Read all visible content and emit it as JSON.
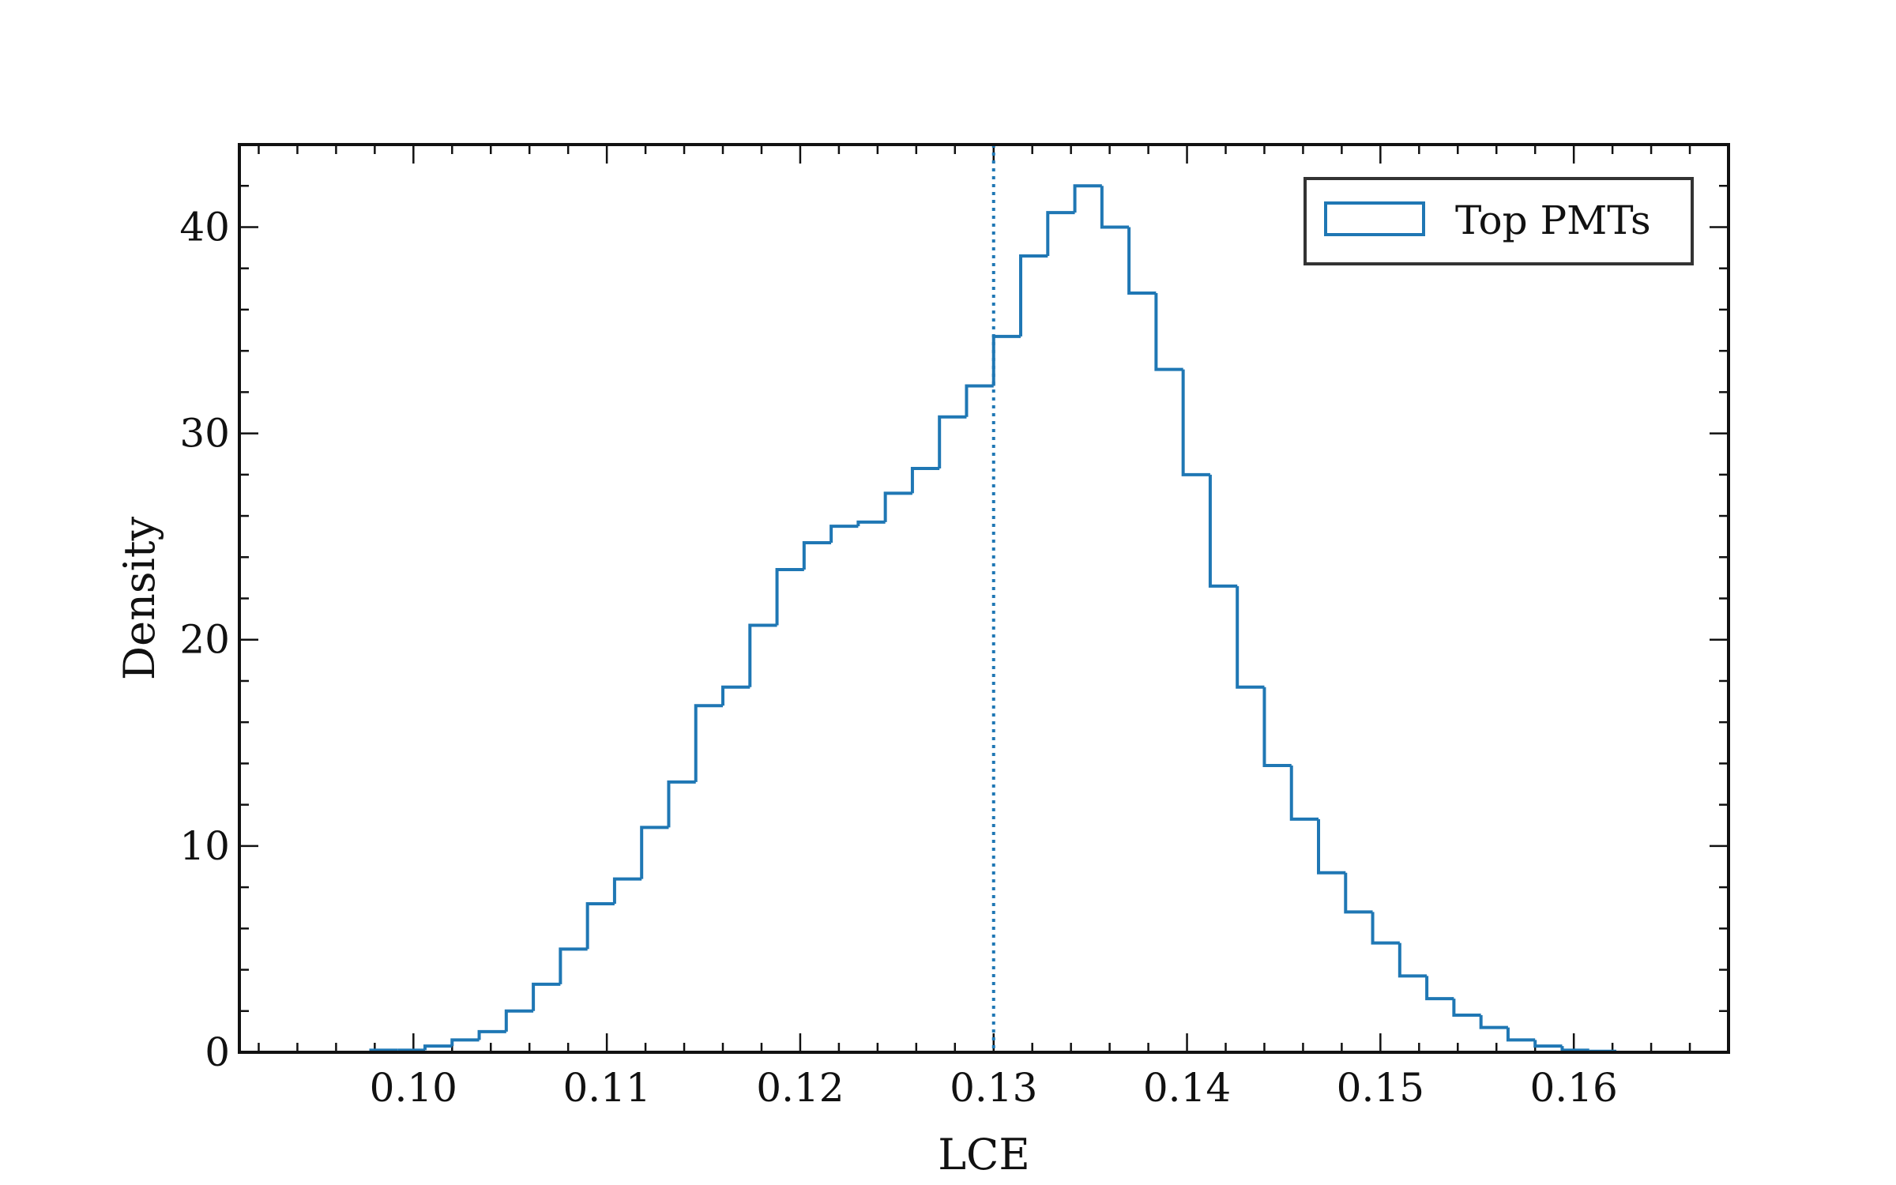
{
  "chart_data": {
    "type": "histogram",
    "xlabel": "LCE",
    "ylabel": "Density",
    "xlim": [
      0.091,
      0.168
    ],
    "ylim": [
      0,
      44
    ],
    "x_ticks": [
      0.1,
      0.11,
      0.12,
      0.13,
      0.14,
      0.15,
      0.16
    ],
    "x_tick_labels": [
      "0.10",
      "0.11",
      "0.12",
      "0.13",
      "0.14",
      "0.15",
      "0.16"
    ],
    "y_ticks": [
      0,
      10,
      20,
      30,
      40
    ],
    "y_tick_labels": [
      "0",
      "10",
      "20",
      "30",
      "40"
    ],
    "vline": {
      "x": 0.13,
      "style": "dotted",
      "color": "#1f77b4"
    },
    "legend": {
      "position": "top-right",
      "entries": [
        "Top PMTs"
      ]
    },
    "grid": false,
    "series": [
      {
        "name": "Top PMTs",
        "color": "#1f77b4",
        "bin_edges": [
          0.0936,
          0.095,
          0.0964,
          0.0978,
          0.0992,
          0.1006,
          0.102,
          0.1034,
          0.1048,
          0.1062,
          0.1076,
          0.109,
          0.1104,
          0.1118,
          0.1132,
          0.1146,
          0.116,
          0.1174,
          0.1188,
          0.1202,
          0.1216,
          0.123,
          0.1244,
          0.1258,
          0.1272,
          0.1286,
          0.13,
          0.1314,
          0.1328,
          0.1342,
          0.1356,
          0.137,
          0.1384,
          0.1398,
          0.1412,
          0.1426,
          0.144,
          0.1454,
          0.1468,
          0.1482,
          0.1496,
          0.151,
          0.1524,
          0.1538,
          0.1552,
          0.1566,
          0.158,
          0.1594,
          0.1608,
          0.1622,
          0.1636,
          0.165
        ],
        "values": [
          0.0,
          0.0,
          0.0,
          0.1,
          0.1,
          0.3,
          0.6,
          1.0,
          2.0,
          3.3,
          5.0,
          7.2,
          8.4,
          10.9,
          13.1,
          16.8,
          17.7,
          20.7,
          23.4,
          24.7,
          25.5,
          25.7,
          27.1,
          28.3,
          30.8,
          32.3,
          34.7,
          38.6,
          40.7,
          42.0,
          40.0,
          36.8,
          33.1,
          28.0,
          22.6,
          17.7,
          13.9,
          11.3,
          8.7,
          6.8,
          5.3,
          3.7,
          2.6,
          1.8,
          1.2,
          0.6,
          0.3,
          0.1,
          0.05,
          0.0,
          0.0
        ]
      }
    ]
  }
}
